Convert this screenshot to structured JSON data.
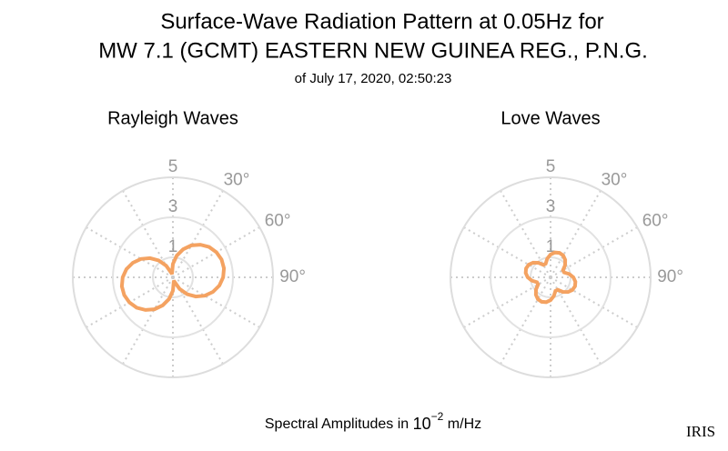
{
  "page": {
    "title": [
      "Surface-Wave Radiation Pattern at 0.05Hz for",
      "MW 7.1 (GCMT) EASTERN NEW GUINEA REG., P.N.G."
    ],
    "subtitle": "of July 17, 2020, 02:50:23",
    "footer": [
      "Spectral Amplitudes in ",
      "10",
      "−2",
      " m/Hz"
    ],
    "logo": "IRIS"
  },
  "chart_data": [
    {
      "type": "polar",
      "title": "Rayleigh Waves",
      "color": "#f4a261",
      "theta": [
        0,
        10,
        20,
        30,
        40,
        50,
        60,
        70,
        80,
        90,
        100,
        110,
        120,
        130,
        140,
        150,
        160,
        170,
        180,
        190,
        200,
        210,
        220,
        230,
        240,
        250,
        260,
        270,
        280,
        290,
        300,
        310,
        320,
        330,
        340,
        350
      ],
      "r": [
        0.67,
        1.1,
        1.49,
        1.84,
        2.13,
        2.36,
        2.51,
        2.59,
        2.59,
        2.51,
        2.36,
        2.13,
        1.84,
        1.49,
        1.1,
        0.67,
        0.23,
        0.23,
        0.67,
        1.1,
        1.49,
        1.84,
        2.13,
        2.36,
        2.51,
        2.59,
        2.59,
        2.51,
        2.36,
        2.13,
        1.84,
        1.49,
        1.1,
        0.67,
        0.23,
        0.23
      ],
      "rlim": [
        0,
        5
      ],
      "rticks": [
        1,
        3,
        5
      ],
      "thetaticks": [
        {
          "value": 30,
          "label": "30°"
        },
        {
          "value": 60,
          "label": "60°"
        },
        {
          "value": 90,
          "label": "90°"
        }
      ],
      "thetagrid_step": 30
    },
    {
      "type": "polar",
      "title": "Love Waves",
      "color": "#f4a261",
      "theta": [
        0,
        10,
        20,
        30,
        40,
        50,
        60,
        70,
        80,
        90,
        100,
        110,
        120,
        130,
        140,
        150,
        160,
        170,
        180,
        190,
        200,
        210,
        220,
        230,
        240,
        250,
        260,
        270,
        280,
        290,
        300,
        310,
        320,
        330,
        340,
        350
      ],
      "r": [
        1.14,
        1.26,
        1.3,
        1.26,
        1.14,
        0.95,
        0.72,
        0.72,
        0.95,
        1.14,
        1.26,
        1.3,
        1.26,
        1.14,
        0.95,
        0.72,
        0.72,
        0.95,
        1.14,
        1.26,
        1.3,
        1.26,
        1.14,
        0.95,
        0.72,
        0.72,
        0.95,
        1.14,
        1.26,
        1.3,
        1.26,
        1.14,
        0.95,
        0.72,
        0.72,
        0.95
      ],
      "rlim": [
        0,
        5
      ],
      "rticks": [
        1,
        3,
        5
      ],
      "thetaticks": [
        {
          "value": 30,
          "label": "30°"
        },
        {
          "value": 60,
          "label": "60°"
        },
        {
          "value": 90,
          "label": "90°"
        }
      ],
      "thetagrid_step": 30
    }
  ]
}
